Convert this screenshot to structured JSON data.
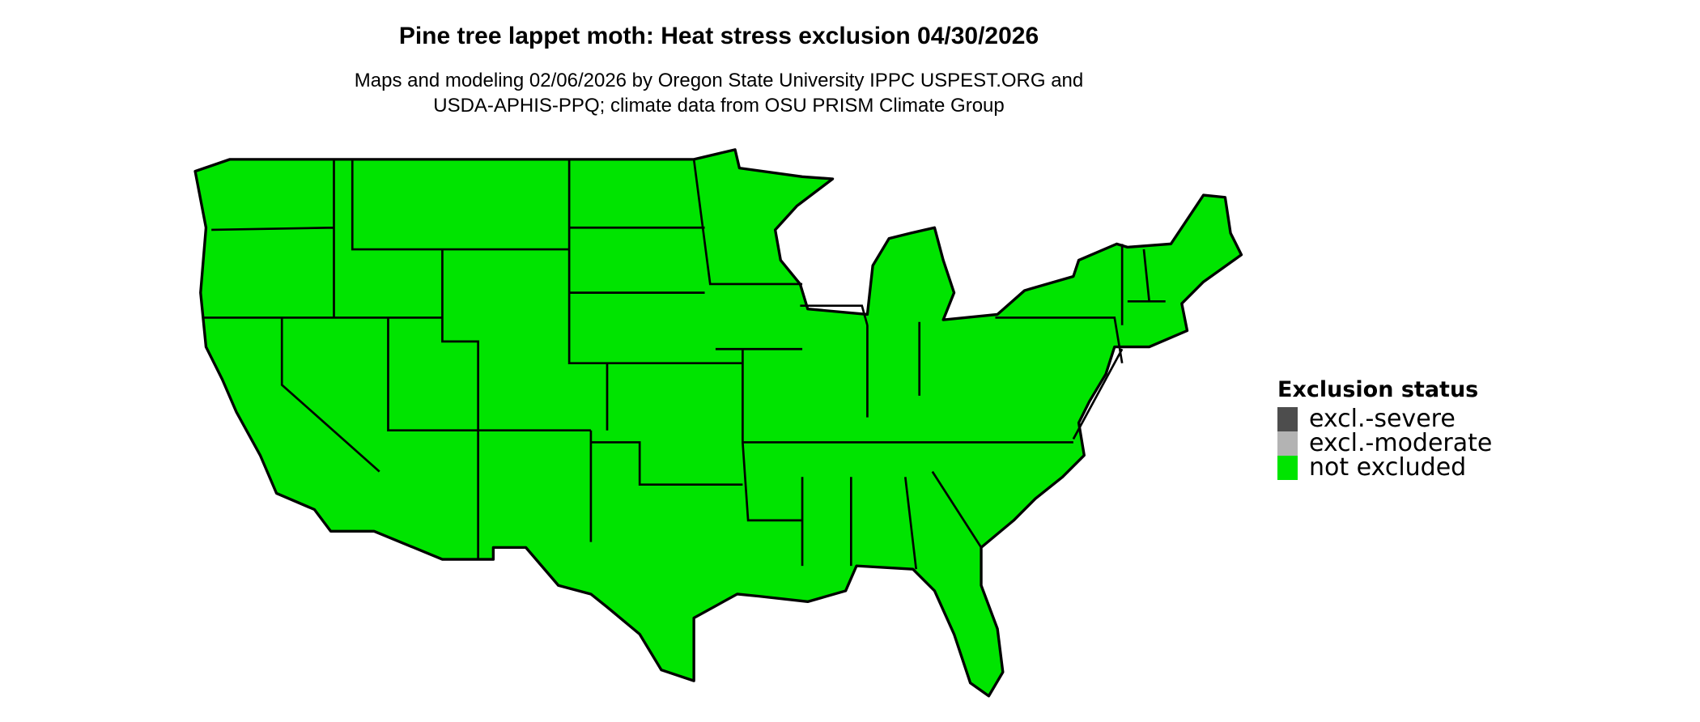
{
  "title": "Pine tree lappet moth: Heat stress exclusion 04/30/2026",
  "subtitle_line1": "Maps and modeling 02/06/2026 by Oregon State University IPPC USPEST.ORG and",
  "subtitle_line2": "USDA-APHIS-PPQ; climate data from OSU PRISM Climate Group",
  "map": {
    "region": "Contiguous United States",
    "fill_status": "not excluded",
    "fill_color": "#00e400",
    "border_color": "#000000"
  },
  "legend": {
    "title": "Exclusion status",
    "items": [
      {
        "label": "excl.-severe",
        "color": "#4d4d4d"
      },
      {
        "label": "excl.-moderate",
        "color": "#b3b3b3"
      },
      {
        "label": "not excluded",
        "color": "#00e400"
      }
    ]
  }
}
